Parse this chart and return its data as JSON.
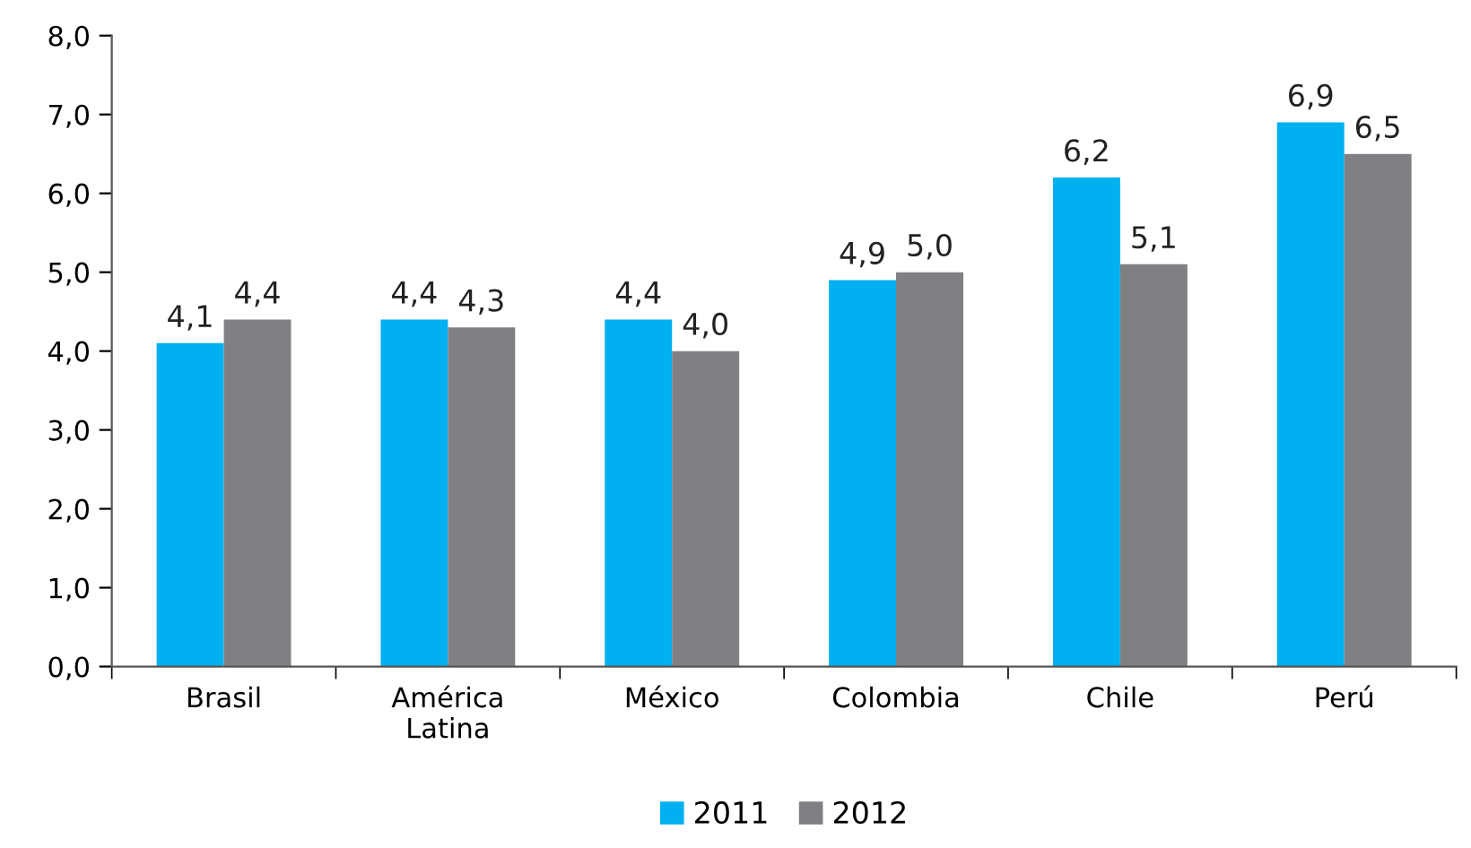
{
  "chart_data": {
    "type": "bar",
    "categories": [
      "Brasil",
      "América\nLatina",
      "México",
      "Colombia",
      "Chile",
      "Perú"
    ],
    "series": [
      {
        "name": "2011",
        "color": "#00b0f0",
        "values": [
          4.1,
          4.4,
          4.4,
          4.9,
          6.2,
          6.9
        ],
        "value_labels": [
          "4,1",
          "4,4",
          "4,4",
          "4,9",
          "6,2",
          "6,9"
        ]
      },
      {
        "name": "2012",
        "color": "#808084",
        "values": [
          4.4,
          4.3,
          4.0,
          5.0,
          5.1,
          6.5
        ],
        "value_labels": [
          "4,4",
          "4,3",
          "4,0",
          "5,0",
          "5,1",
          "6,5"
        ]
      }
    ],
    "ylim": [
      0,
      8
    ],
    "yticks": [
      {
        "value": 0,
        "label": "0,0"
      },
      {
        "value": 1,
        "label": "1,0"
      },
      {
        "value": 2,
        "label": "2,0"
      },
      {
        "value": 3,
        "label": "3,0"
      },
      {
        "value": 4,
        "label": "4,0"
      },
      {
        "value": 5,
        "label": "5,0"
      },
      {
        "value": 6,
        "label": "6,0"
      },
      {
        "value": 7,
        "label": "7,0"
      },
      {
        "value": 8,
        "label": "8,0"
      }
    ],
    "grid": false,
    "legend": "bottom"
  }
}
